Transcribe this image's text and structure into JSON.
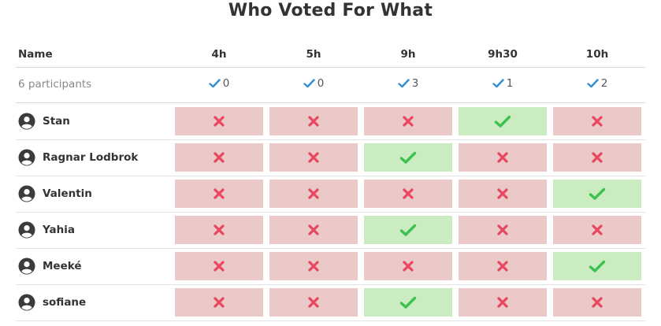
{
  "title": "Who Voted For What",
  "header": {
    "name_label": "Name",
    "slots": [
      "4h",
      "5h",
      "9h",
      "9h30",
      "10h"
    ]
  },
  "summary": {
    "participants_label": "6 participants",
    "counts": [
      "0",
      "0",
      "3",
      "1",
      "2"
    ]
  },
  "participants": [
    {
      "name": "Stan",
      "votes": [
        "no",
        "no",
        "no",
        "yes",
        "no"
      ]
    },
    {
      "name": "Ragnar Lodbrok",
      "votes": [
        "no",
        "no",
        "yes",
        "no",
        "no"
      ]
    },
    {
      "name": "Valentin",
      "votes": [
        "no",
        "no",
        "no",
        "no",
        "yes"
      ]
    },
    {
      "name": "Yahia",
      "votes": [
        "no",
        "no",
        "yes",
        "no",
        "no"
      ]
    },
    {
      "name": "Meeké",
      "votes": [
        "no",
        "no",
        "no",
        "no",
        "yes"
      ]
    },
    {
      "name": "sofiane",
      "votes": [
        "no",
        "no",
        "yes",
        "no",
        "no"
      ]
    }
  ],
  "colors": {
    "yes_bg": "#cbebc0",
    "no_bg": "#ecc9c9",
    "check": "#3cc14e",
    "cross": "#e8475f",
    "count_check": "#2f8fd0"
  },
  "icons": {
    "yes": "check-icon",
    "no": "cross-icon",
    "avatar": "user-circle-icon"
  }
}
